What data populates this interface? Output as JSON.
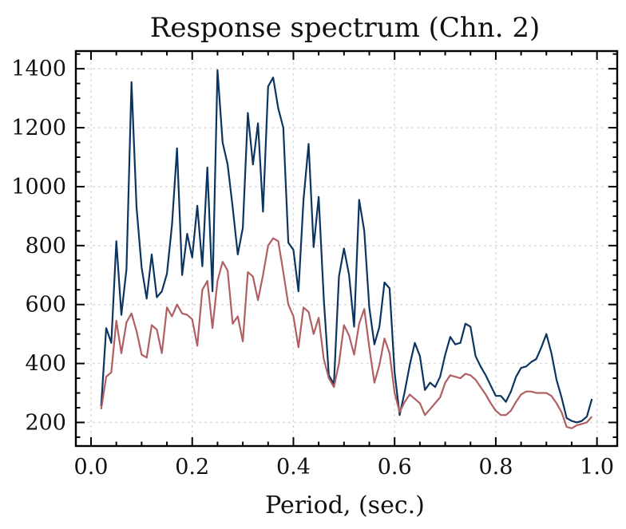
{
  "chart_data": {
    "type": "line",
    "title": "Response spectrum (Chn. 2)",
    "xlabel": "Period, (sec.)",
    "ylabel": "",
    "xlim": [
      -0.03,
      1.04
    ],
    "ylim": [
      120,
      1460
    ],
    "xticks": [
      0.0,
      0.2,
      0.4,
      0.6,
      0.8,
      1.0
    ],
    "xtick_labels": [
      "0.0",
      "0.2",
      "0.4",
      "0.6",
      "0.8",
      "1.0"
    ],
    "yticks": [
      200,
      400,
      600,
      800,
      1000,
      1200,
      1400
    ],
    "ytick_labels": [
      "200",
      "400",
      "600",
      "800",
      "1000",
      "1200",
      "1400"
    ],
    "grid": true,
    "series": [
      {
        "color": "#0b3560",
        "x": [
          0.02,
          0.03,
          0.04,
          0.05,
          0.06,
          0.07,
          0.08,
          0.09,
          0.1,
          0.11,
          0.12,
          0.13,
          0.14,
          0.15,
          0.16,
          0.17,
          0.18,
          0.19,
          0.2,
          0.21,
          0.22,
          0.23,
          0.24,
          0.25,
          0.26,
          0.27,
          0.28,
          0.29,
          0.3,
          0.31,
          0.32,
          0.33,
          0.34,
          0.35,
          0.36,
          0.37,
          0.38,
          0.39,
          0.4,
          0.41,
          0.42,
          0.43,
          0.44,
          0.45,
          0.46,
          0.47,
          0.48,
          0.49,
          0.5,
          0.51,
          0.52,
          0.53,
          0.54,
          0.55,
          0.56,
          0.57,
          0.58,
          0.59,
          0.6,
          0.61,
          0.62,
          0.63,
          0.64,
          0.65,
          0.66,
          0.67,
          0.68,
          0.69,
          0.7,
          0.71,
          0.72,
          0.73,
          0.74,
          0.75,
          0.76,
          0.77,
          0.78,
          0.79,
          0.8,
          0.81,
          0.82,
          0.83,
          0.84,
          0.85,
          0.86,
          0.87,
          0.88,
          0.89,
          0.9,
          0.91,
          0.92,
          0.93,
          0.94,
          0.95,
          0.96,
          0.97,
          0.98,
          0.99
        ],
        "y": [
          255,
          520,
          470,
          815,
          565,
          720,
          1355,
          930,
          725,
          620,
          770,
          625,
          645,
          705,
          870,
          1130,
          700,
          840,
          760,
          935,
          730,
          1065,
          645,
          1395,
          1150,
          1075,
          930,
          770,
          860,
          1250,
          1075,
          1215,
          915,
          1340,
          1370,
          1265,
          1200,
          810,
          785,
          645,
          955,
          1145,
          795,
          965,
          620,
          360,
          330,
          695,
          790,
          700,
          525,
          955,
          850,
          590,
          465,
          525,
          675,
          655,
          370,
          225,
          305,
          395,
          470,
          425,
          310,
          335,
          320,
          355,
          430,
          490,
          465,
          470,
          535,
          525,
          425,
          390,
          360,
          325,
          290,
          290,
          270,
          305,
          355,
          385,
          390,
          405,
          415,
          455,
          500,
          435,
          345,
          285,
          215,
          205,
          200,
          205,
          220,
          280
        ]
      },
      {
        "color": "#b05f62",
        "x": [
          0.02,
          0.03,
          0.04,
          0.05,
          0.06,
          0.07,
          0.08,
          0.09,
          0.1,
          0.11,
          0.12,
          0.13,
          0.14,
          0.15,
          0.16,
          0.17,
          0.18,
          0.19,
          0.2,
          0.21,
          0.22,
          0.23,
          0.24,
          0.25,
          0.26,
          0.27,
          0.28,
          0.29,
          0.3,
          0.31,
          0.32,
          0.33,
          0.34,
          0.35,
          0.36,
          0.37,
          0.38,
          0.39,
          0.4,
          0.41,
          0.42,
          0.43,
          0.44,
          0.45,
          0.46,
          0.47,
          0.48,
          0.49,
          0.5,
          0.51,
          0.52,
          0.53,
          0.54,
          0.55,
          0.56,
          0.57,
          0.58,
          0.59,
          0.6,
          0.61,
          0.62,
          0.63,
          0.64,
          0.65,
          0.66,
          0.67,
          0.68,
          0.69,
          0.7,
          0.71,
          0.72,
          0.73,
          0.74,
          0.75,
          0.76,
          0.77,
          0.78,
          0.79,
          0.8,
          0.81,
          0.82,
          0.83,
          0.84,
          0.85,
          0.86,
          0.87,
          0.88,
          0.89,
          0.9,
          0.91,
          0.92,
          0.93,
          0.94,
          0.95,
          0.96,
          0.97,
          0.98,
          0.99
        ],
        "y": [
          245,
          355,
          370,
          545,
          435,
          540,
          570,
          510,
          430,
          420,
          530,
          515,
          435,
          590,
          560,
          600,
          570,
          565,
          550,
          460,
          650,
          680,
          520,
          680,
          745,
          715,
          535,
          560,
          475,
          710,
          695,
          615,
          700,
          800,
          825,
          815,
          710,
          600,
          560,
          455,
          590,
          575,
          500,
          555,
          415,
          350,
          320,
          400,
          530,
          495,
          430,
          535,
          585,
          455,
          335,
          395,
          485,
          435,
          300,
          235,
          270,
          295,
          280,
          265,
          225,
          245,
          265,
          285,
          335,
          360,
          355,
          350,
          365,
          360,
          345,
          320,
          295,
          265,
          240,
          225,
          225,
          240,
          270,
          295,
          305,
          305,
          300,
          300,
          300,
          290,
          265,
          235,
          185,
          180,
          190,
          195,
          200,
          220
        ]
      }
    ]
  }
}
